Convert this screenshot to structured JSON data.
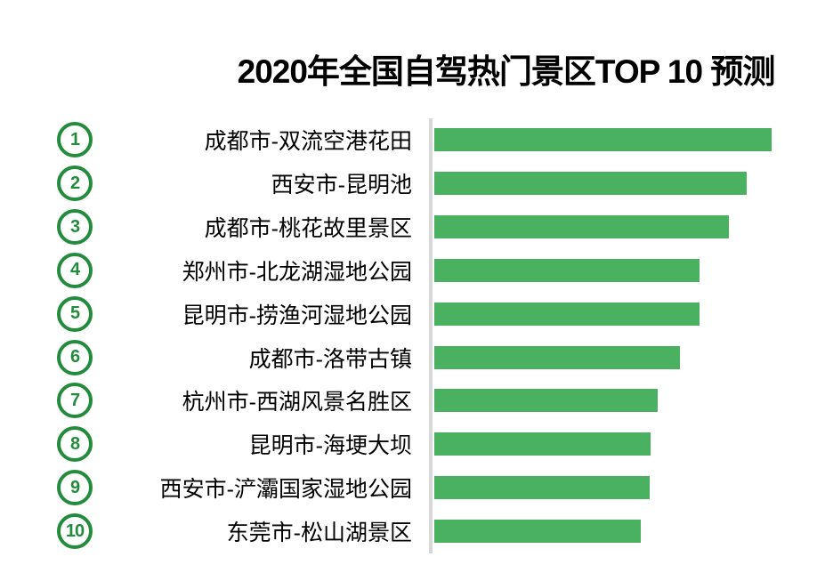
{
  "chart_data": {
    "type": "bar",
    "orientation": "horizontal",
    "title": "2020年全国自驾热门景区TOP 10 预测",
    "ranks": [
      "1",
      "2",
      "3",
      "4",
      "5",
      "6",
      "7",
      "8",
      "9",
      "10"
    ],
    "categories": [
      "成都市-双流空港花田",
      "西安市-昆明池",
      "成都市-桃花故里景区",
      "郑州市-北龙湖湿地公园",
      "昆明市-捞渔河湿地公园",
      "成都市-洛带古镇",
      "杭州市-西湖风景名胜区",
      "昆明市-海埂大坝",
      "西安市-浐灞国家湿地公园",
      "东莞市-松山湖景区"
    ],
    "values": [
      100,
      92.7,
      87.4,
      78.7,
      78.7,
      72.8,
      66.3,
      64.2,
      63.9,
      61.3
    ],
    "value_note": "No numeric axis is shown in the chart; values are relative bar lengths normalized to the longest bar = 100",
    "xlabel": "",
    "ylabel": "",
    "xlim": [
      0,
      109
    ],
    "grid": false,
    "legend": false,
    "sorted": "descending"
  },
  "colors": {
    "bar": "#4ab161",
    "rank_circle": "#238c3c",
    "axis_line": "#d8d8d8",
    "title_text": "#000000",
    "label_text": "#000000",
    "background": "#ffffff"
  }
}
